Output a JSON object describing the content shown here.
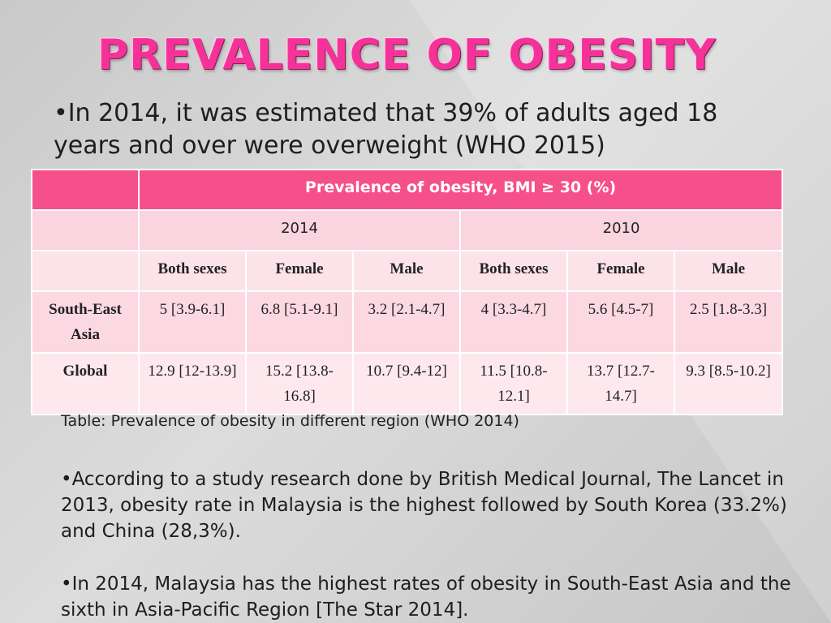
{
  "title": "PREVALENCE OF OBESITY",
  "bullet_intro": "•In 2014, it was estimated that 39% of adults aged 18 years and over were overweight (WHO 2015)",
  "table": {
    "header": "Prevalence of obesity, BMI ≥ 30 (%)",
    "years": [
      "2014",
      "2010"
    ],
    "subheaders": [
      "Both sexes",
      "Female",
      "Male",
      "Both sexes",
      "Female",
      "Male"
    ],
    "rows": [
      {
        "label": "South-East Asia",
        "cells": [
          "5 [3.9-6.1]",
          "6.8 [5.1-9.1]",
          "3.2 [2.1-4.7]",
          "4 [3.3-4.7]",
          "5.6 [4.5-7]",
          "2.5 [1.8-3.3]"
        ]
      },
      {
        "label": "Global",
        "cells": [
          "12.9 [12-13.9]",
          "15.2 [13.8-16.8]",
          "10.7 [9.4-12]",
          "11.5 [10.8-12.1]",
          "13.7 [12.7-14.7]",
          "9.3 [8.5-10.2]"
        ]
      }
    ]
  },
  "caption": "Table: Prevalence of obesity in different region (WHO 2014)",
  "bullet_study": "•According to a study research done by British Medical Journal, The Lancet in 2013, obesity rate in Malaysia is the highest followed by South Korea (33.2%) and China (28,3%).",
  "bullet_malaysia": "•In 2014, Malaysia has the highest rates of obesity in South-East Asia and the sixth in Asia-Pacific Region [The Star 2014].",
  "colors": {
    "title_pink": "#f5329a",
    "header_pink": "#f5508a",
    "row_pink": "#fcd8e2",
    "background_gray": "#d6d6d6"
  }
}
